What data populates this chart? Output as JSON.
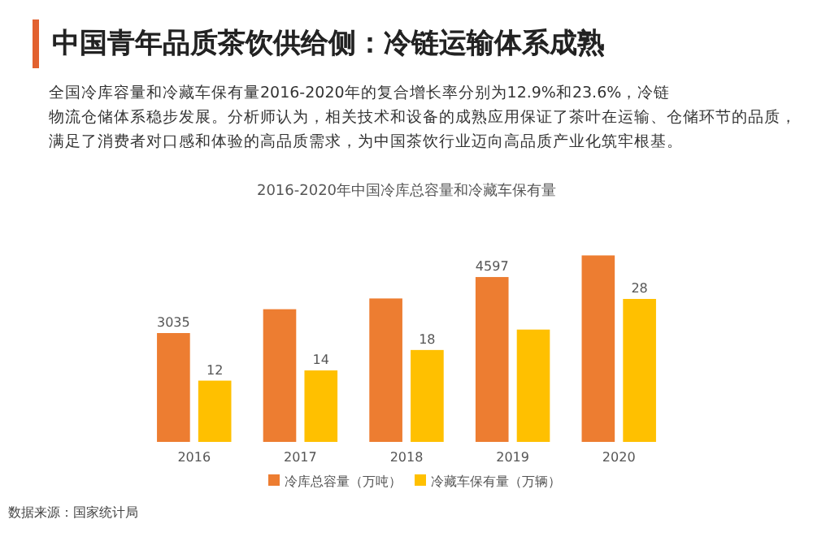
{
  "chart_data": {
    "type": "bar",
    "title": "中国青年品质茶饮供给侧：冷链运输体系成熟",
    "subtitle": "全国冷库容量和冷藏车保有量2016-2020年的复合增长率分别为12.9%和23.6%，冷链物流仓储体系稳步发展。分析师认为，相关技术和设备的成熟应用保证了茶叶在运输、仓储环节的品质，满足了消费者对口感和体验的高品质需求，为中国茶饮行业迈向高品质产业化筑牢根基。",
    "xlabel": "2016-2020年中国冷库总容量和冷藏车保有量",
    "categories": [
      "2016",
      "2017",
      "2018",
      "2019",
      "2020"
    ],
    "series": [
      {
        "name": "冷库总容量（万吨）",
        "color": "#ed7d31",
        "values": [
          3035,
          3700,
          4000,
          4597,
          5200
        ],
        "value_labels": [
          "3035",
          null,
          null,
          "4597",
          null
        ]
      },
      {
        "name": "冷藏车保有量（万辆）",
        "color": "#ffc000",
        "values": [
          12,
          14,
          18,
          22,
          28
        ],
        "value_labels": [
          "12",
          "14",
          "18",
          null,
          "28"
        ],
        "axis": "y2"
      }
    ],
    "tick_labels": "x",
    "grid": false,
    "legend": "bottom",
    "annotations": [
      "数据来源：国家统计局"
    ]
  }
}
